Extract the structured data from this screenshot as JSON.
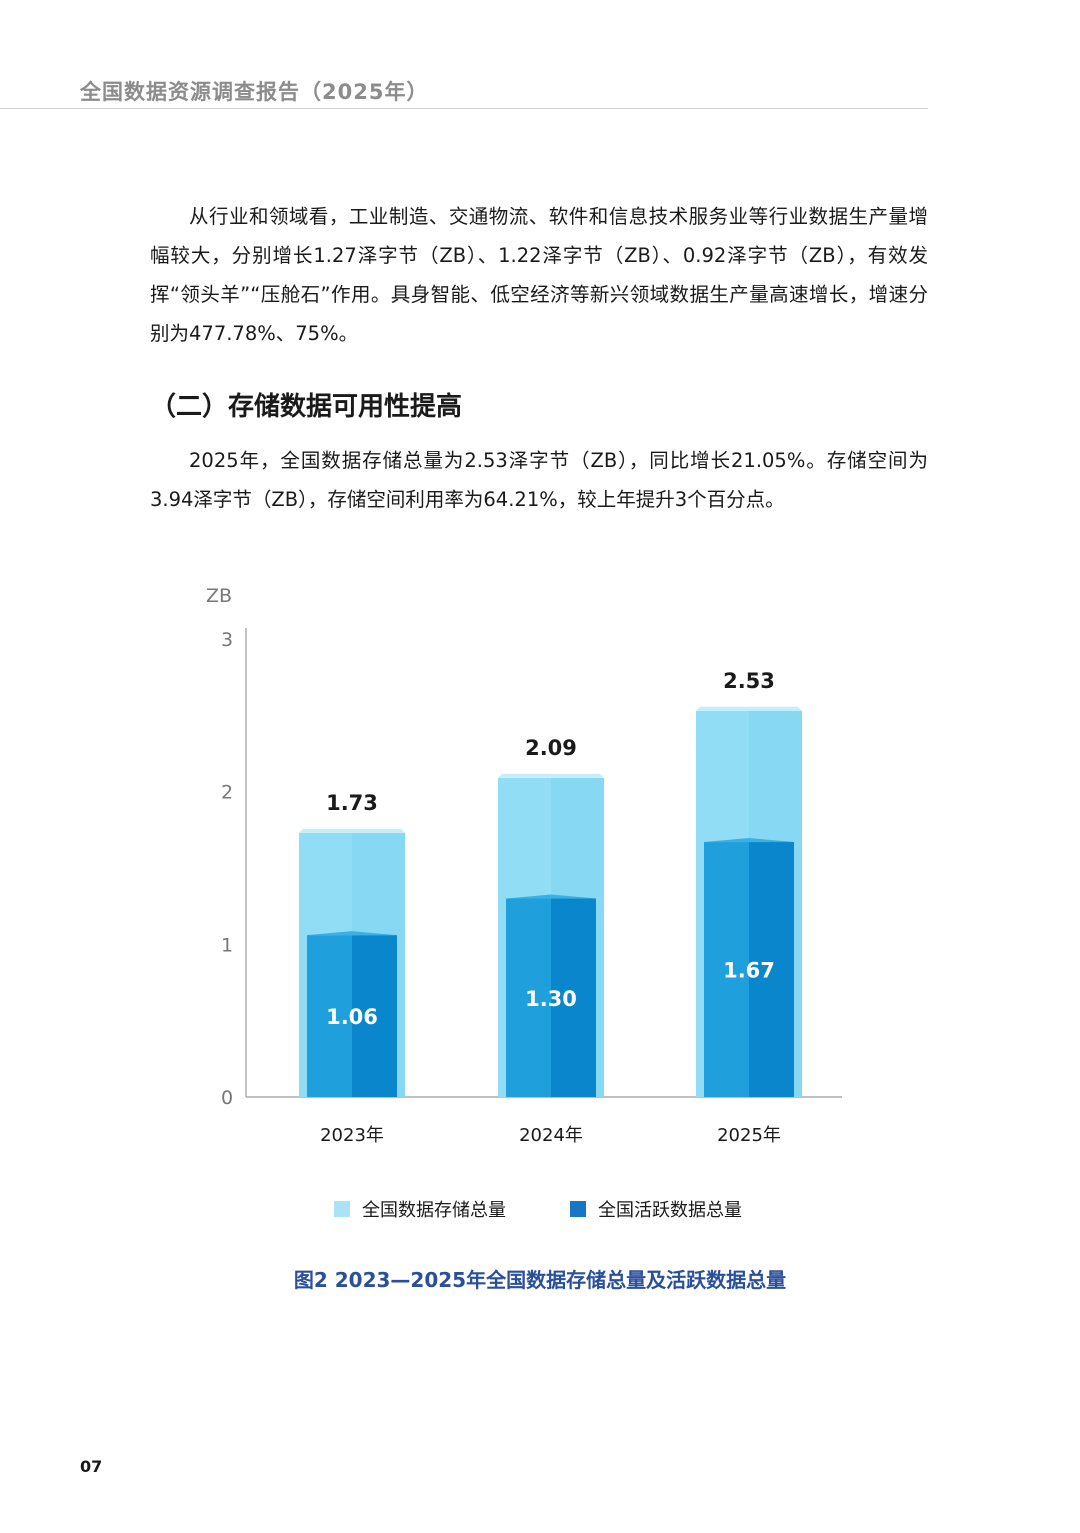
{
  "header": {
    "title": "全国数据资源调查报告（2025年）"
  },
  "paragraphs": {
    "p1": "从行业和领域看，工业制造、交通物流、软件和信息技术服务业等行业数据生产量增幅较大，分别增长1.27泽字节（ZB）、1.22泽字节（ZB）、0.92泽字节（ZB），有效发挥“领头羊”“压舱石”作用。具身智能、低空经济等新兴领域数据生产量高速增长，增速分别为477.78%、75%。",
    "p2": "2025年，全国数据存储总量为2.53泽字节（ZB），同比增长21.05%。存储空间为3.94泽字节（ZB），存储空间利用率为64.21%，较上年提升3个百分点。"
  },
  "section": {
    "heading": "（二）存储数据可用性提高"
  },
  "chart_data": {
    "type": "bar",
    "title": "",
    "xlabel": "",
    "ylabel": "ZB",
    "ylim": [
      0,
      3
    ],
    "yticks": [
      "0",
      "1",
      "2",
      "3"
    ],
    "categories": [
      "2023年",
      "2024年",
      "2025年"
    ],
    "series": [
      {
        "name": "全国数据存储总量",
        "values": [
          1.73,
          2.09,
          2.53
        ],
        "labels": [
          "1.73",
          "2.09",
          "2.53"
        ],
        "color": "#8fdcf4"
      },
      {
        "name": "全国活跃数据总量",
        "values": [
          1.06,
          1.3,
          1.67
        ],
        "labels": [
          "1.06",
          "1.30",
          "1.67"
        ],
        "color": "#1a9ad8"
      }
    ],
    "legend": "bottom-center",
    "grid": false
  },
  "legend": {
    "storage_label": "全国数据存储总量",
    "active_label": "全国活跃数据总量",
    "storage_color": "#a8e3f6",
    "active_color": "#1877c4"
  },
  "caption": "图2 2023—2025年全国数据存储总量及活跃数据总量",
  "page_number": "07"
}
